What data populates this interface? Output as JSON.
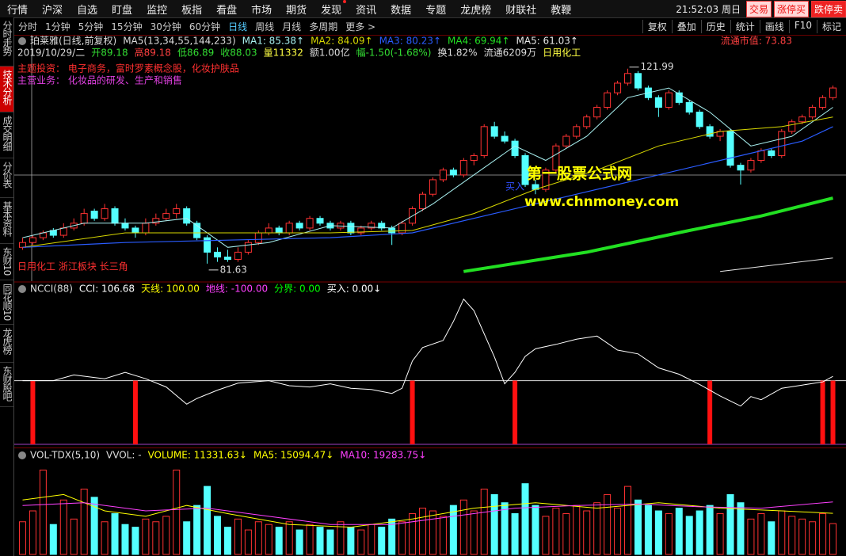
{
  "menu": {
    "items": [
      "行情",
      "沪深",
      "自选",
      "盯盘",
      "监控",
      "板指",
      "看盘",
      "市场",
      "期货",
      "发现",
      "资讯",
      "数据",
      "专题",
      "龙虎榜",
      "财联社",
      "教鞭"
    ],
    "clock": "21:52:03",
    "weekday": "周日",
    "buttons": [
      "交易",
      "涨停买",
      "跌停卖"
    ]
  },
  "toolbar": {
    "periods": [
      "分时",
      "1分钟",
      "5分钟",
      "15分钟",
      "30分钟",
      "60分钟",
      "日线",
      "周线",
      "月线",
      "多周期",
      "更多 >"
    ],
    "tools": [
      "复权",
      "叠加",
      "历史",
      "统计",
      "画线",
      "F10",
      "标记"
    ]
  },
  "sidebar": [
    "分时走势",
    "技术分析",
    "成交明细",
    "分价表",
    "基本资料",
    "东财10",
    "同花顺10",
    "龙虎榜",
    "东财股吧"
  ],
  "chart_data": [
    {
      "type": "candlestick",
      "title": "珀莱雅(日线,前复权)",
      "indicator": "MA5(13,34,55,144,233)",
      "up_color": "#ff3232",
      "down_color": "#54ffff",
      "xlim": [
        -0.5,
        79.5
      ],
      "ylim": [
        78,
        129
      ],
      "candles": [
        [
          85,
          87,
          84.5,
          86
        ],
        [
          86,
          87.5,
          85.5,
          87
        ],
        [
          87,
          88.5,
          86.5,
          88
        ],
        [
          88.5,
          89,
          87,
          87.5
        ],
        [
          87.5,
          90,
          87,
          89
        ],
        [
          89,
          91,
          88.5,
          90
        ],
        [
          90,
          93,
          89.5,
          92
        ],
        [
          92.5,
          93,
          90.5,
          91
        ],
        [
          91,
          94,
          90.5,
          93
        ],
        [
          93,
          93.5,
          89.5,
          90
        ],
        [
          90,
          91,
          88.5,
          89
        ],
        [
          89,
          89.5,
          87,
          88
        ],
        [
          88,
          91,
          87.5,
          90
        ],
        [
          90,
          92,
          89.5,
          91
        ],
        [
          91,
          93,
          90.5,
          92
        ],
        [
          92,
          94,
          91,
          93
        ],
        [
          93,
          93.5,
          89.5,
          90
        ],
        [
          90,
          90.5,
          86.5,
          87
        ],
        [
          87,
          87.5,
          81.63,
          84
        ],
        [
          84,
          85,
          82,
          83
        ],
        [
          83,
          84.5,
          82,
          82.5
        ],
        [
          82.5,
          85,
          82,
          84
        ],
        [
          84,
          86.5,
          83.5,
          86
        ],
        [
          86,
          88.5,
          85.5,
          88
        ],
        [
          88,
          90,
          87.5,
          89
        ],
        [
          89,
          89.5,
          87.5,
          88
        ],
        [
          88,
          90.5,
          87.5,
          90
        ],
        [
          90,
          90.5,
          88.5,
          89
        ],
        [
          89,
          91.5,
          88.5,
          91
        ],
        [
          91,
          91.5,
          89.5,
          90
        ],
        [
          90,
          90.5,
          88.5,
          89
        ],
        [
          89,
          90.5,
          88.5,
          90
        ],
        [
          90,
          90.5,
          87.5,
          88
        ],
        [
          88,
          89.5,
          87.5,
          89
        ],
        [
          89,
          90.5,
          88.5,
          90
        ],
        [
          90,
          90.5,
          88.5,
          89
        ],
        [
          89,
          89.5,
          85.5,
          88
        ],
        [
          88,
          90.5,
          87.5,
          90
        ],
        [
          90,
          93.5,
          89.5,
          93
        ],
        [
          93,
          96.5,
          92.5,
          96
        ],
        [
          96,
          99.5,
          95.5,
          99
        ],
        [
          99,
          101.5,
          98.5,
          101
        ],
        [
          101,
          101.5,
          99.5,
          100
        ],
        [
          100,
          103.5,
          99.5,
          103
        ],
        [
          103,
          104.5,
          102,
          104
        ],
        [
          104,
          110.5,
          103.5,
          110
        ],
        [
          110,
          111,
          107.5,
          108
        ],
        [
          108,
          109,
          106.5,
          107
        ],
        [
          107,
          107.5,
          103.5,
          104
        ],
        [
          104,
          104.5,
          97.5,
          98
        ],
        [
          98,
          99,
          96,
          97
        ],
        [
          97,
          101.5,
          96.5,
          101
        ],
        [
          101,
          106.5,
          100.5,
          106
        ],
        [
          106,
          108.5,
          105.5,
          108
        ],
        [
          108,
          110.5,
          107.5,
          110
        ],
        [
          110,
          112.5,
          109.5,
          112
        ],
        [
          112,
          114.5,
          111.5,
          114
        ],
        [
          114,
          117.5,
          113.5,
          117
        ],
        [
          117,
          119.5,
          116.5,
          119
        ],
        [
          119,
          121.99,
          118.5,
          121
        ],
        [
          121,
          121.5,
          117.5,
          118
        ],
        [
          118,
          118.5,
          115.5,
          116
        ],
        [
          116,
          116.5,
          112,
          114
        ],
        [
          114,
          117.5,
          113.5,
          117
        ],
        [
          117,
          117.5,
          114.5,
          115
        ],
        [
          115,
          115.5,
          112.5,
          113
        ],
        [
          113,
          113.5,
          109.5,
          110
        ],
        [
          110,
          110.5,
          107.5,
          108
        ],
        [
          108,
          109.5,
          107,
          109
        ],
        [
          109,
          109.5,
          101.5,
          102
        ],
        [
          102,
          102.5,
          98,
          101
        ],
        [
          101,
          103.5,
          100.5,
          103
        ],
        [
          103,
          105.5,
          102.5,
          105
        ],
        [
          105,
          105.5,
          103.5,
          104
        ],
        [
          104,
          109.5,
          103.5,
          109
        ],
        [
          109,
          111.5,
          108.5,
          111
        ],
        [
          111,
          112.5,
          110.5,
          112
        ],
        [
          112,
          114.5,
          111.5,
          114
        ],
        [
          114,
          116.5,
          113.5,
          116
        ],
        [
          116,
          118.5,
          115.5,
          118
        ]
      ],
      "series": [
        {
          "name": "MA1: 85.38↑",
          "color": "#a8f0f0",
          "width": 1,
          "x": [
            0,
            6,
            12,
            16,
            20,
            24,
            30,
            36,
            40,
            44,
            48,
            51,
            55,
            59,
            63,
            67,
            71,
            75,
            79
          ],
          "values": [
            87,
            90,
            90,
            91,
            85,
            86,
            89.5,
            89,
            94,
            100,
            106,
            103,
            108,
            116,
            118,
            113,
            106,
            108,
            114
          ]
        },
        {
          "name": "MA2: 84.09↑",
          "color": "#d8d800",
          "width": 1,
          "x": [
            0,
            10,
            20,
            30,
            38,
            44,
            50,
            56,
            62,
            68,
            74,
            79
          ],
          "values": [
            85,
            88,
            88,
            88,
            88.5,
            92,
            97,
            101,
            106,
            109,
            110,
            112
          ]
        },
        {
          "name": "MA3: 80.23↑",
          "color": "#2a5cff",
          "width": 1.2,
          "x": [
            0,
            10,
            20,
            30,
            38,
            46,
            54,
            62,
            70,
            76,
            79
          ],
          "values": [
            85,
            86,
            86.5,
            87,
            88,
            92,
            96,
            100,
            104,
            107,
            110
          ]
        },
        {
          "name": "MA4: 69.94↑",
          "color": "#22e022",
          "width": 4,
          "x": [
            43,
            55,
            65,
            72,
            79
          ],
          "values": [
            80,
            84,
            88.5,
            91.5,
            95.2
          ]
        },
        {
          "name": "MA5: 61.03↑",
          "color": "#e8e8e8",
          "width": 1,
          "x": [
            68,
            79
          ],
          "values": [
            80,
            82.8
          ]
        }
      ],
      "info": [
        {
          "text": "2019/10/29/二",
          "color": "#dddddd"
        },
        {
          "text": "开89.18",
          "color": "#33dd33"
        },
        {
          "text": "高89.18",
          "color": "#ff4040"
        },
        {
          "text": "低86.89",
          "color": "#33dd33"
        },
        {
          "text": "收88.03",
          "color": "#33dd33"
        },
        {
          "text": "量11332",
          "color": "#ffff44"
        },
        {
          "text": "额1.00亿",
          "color": "#dddddd"
        },
        {
          "text": "幅-1.50(-1.68%)",
          "color": "#33dd33"
        },
        {
          "text": "换1.82%",
          "color": "#dddddd"
        },
        {
          "text": "流通6209万",
          "color": "#dddddd"
        },
        {
          "text": "日用化工",
          "color": "#ffff44"
        }
      ],
      "market_cap": "流通市值: 73.83",
      "theme": "主题投资：  电子商务，富时罗素概念股，化妆护肤品",
      "business": "主营业务：  化妆品的研发、生产和销售",
      "high_label": {
        "x": 59,
        "value": 121.99
      },
      "low_label": {
        "x": 18,
        "value": 81.63
      },
      "tags": "日用化工  浙江板块  长三角",
      "buy_tag": "买入",
      "watermark": [
        "第一股票公式网",
        "www.chnmoney.com"
      ]
    },
    {
      "type": "line",
      "title": "NCCI(88)",
      "xlim": [
        -0.5,
        79.5
      ],
      "ylim": [
        -5,
        250
      ],
      "series": [
        {
          "name": "CCI: 106.68",
          "color": "#ffffff",
          "x": [
            0,
            3,
            5,
            8,
            10,
            12,
            14,
            16,
            17,
            19,
            21,
            24,
            26,
            28,
            30,
            32,
            34,
            36,
            37,
            38,
            39,
            41,
            42,
            43,
            44,
            46,
            47,
            48,
            49,
            50,
            52,
            54,
            56,
            58,
            60,
            62,
            64,
            66,
            68,
            70,
            71,
            72,
            74,
            76,
            78,
            79
          ],
          "values": [
            100,
            100,
            109,
            103,
            113,
            103,
            90,
            63,
            72,
            85,
            96,
            100,
            92,
            90,
            95,
            88,
            86,
            80,
            88,
            131,
            152,
            163,
            193,
            228,
            210,
            137,
            95,
            113,
            138,
            150,
            157,
            165,
            170,
            148,
            142,
            120,
            110,
            94,
            76,
            60,
            75,
            70,
            88,
            93,
            98,
            106.68
          ]
        }
      ],
      "legend": [
        {
          "text": "天线: 100.00",
          "color": "#ffff00"
        },
        {
          "text": "地线: -100.00",
          "color": "#ff40ff"
        },
        {
          "text": "分界: 0.00",
          "color": "#00ff00"
        },
        {
          "text": "买入: 0.00↓",
          "color": "#ffffff"
        }
      ],
      "hlines": [
        {
          "value": 100,
          "color": "#dddddd"
        },
        {
          "value": 0,
          "color": "#a040c0"
        }
      ],
      "signals": {
        "color": "#ff1010",
        "x": [
          1,
          11,
          38,
          48,
          67,
          78,
          79
        ],
        "values": [
          100,
          100,
          100,
          100,
          100,
          100,
          100
        ]
      }
    },
    {
      "type": "bar",
      "title": "VOL-TDX(5,10)",
      "subtitle": "VVOL: -",
      "xlim": [
        -0.5,
        79.5
      ],
      "ylim": [
        0,
        39000
      ],
      "volume_label": "VOLUME: 11331.63↓",
      "values": [
        12000,
        16000,
        31000,
        11000,
        20000,
        13000,
        24000,
        21000,
        12000,
        15000,
        11000,
        10000,
        13000,
        12000,
        14000,
        31000,
        12000,
        18000,
        25000,
        14000,
        10000,
        13000,
        9000,
        12000,
        11000,
        10000,
        12000,
        9000,
        11000,
        10000,
        9000,
        12000,
        10000,
        9000,
        11000,
        10000,
        13000,
        12000,
        15000,
        17000,
        16000,
        14000,
        18000,
        20000,
        16000,
        24000,
        22000,
        19000,
        15000,
        26000,
        18000,
        14000,
        17000,
        15000,
        18000,
        16000,
        19000,
        22000,
        17000,
        25000,
        20000,
        18000,
        16000,
        15000,
        17000,
        14000,
        16000,
        18000,
        15000,
        22000,
        19000,
        13000,
        15000,
        12000,
        16000,
        14000,
        13000,
        12000,
        15000,
        11331.63
      ],
      "series": [
        {
          "name": "MA5: 15094.47↓",
          "color": "#ffff00",
          "x": [
            0,
            4,
            8,
            12,
            16,
            20,
            26,
            32,
            38,
            44,
            50,
            56,
            62,
            68,
            74,
            79
          ],
          "values": [
            20000,
            22000,
            16000,
            14000,
            18000,
            15000,
            11000,
            10000,
            13000,
            17000,
            19000,
            17000,
            19000,
            17000,
            16000,
            15094.47
          ]
        },
        {
          "name": "MA10: 19283.75↓",
          "color": "#ff40ff",
          "x": [
            0,
            6,
            12,
            18,
            24,
            30,
            36,
            42,
            48,
            54,
            60,
            66,
            72,
            79
          ],
          "values": [
            18000,
            19000,
            16000,
            17000,
            14000,
            11000,
            11000,
            14000,
            17000,
            18000,
            18500,
            17500,
            17000,
            19283.75
          ]
        }
      ]
    }
  ]
}
